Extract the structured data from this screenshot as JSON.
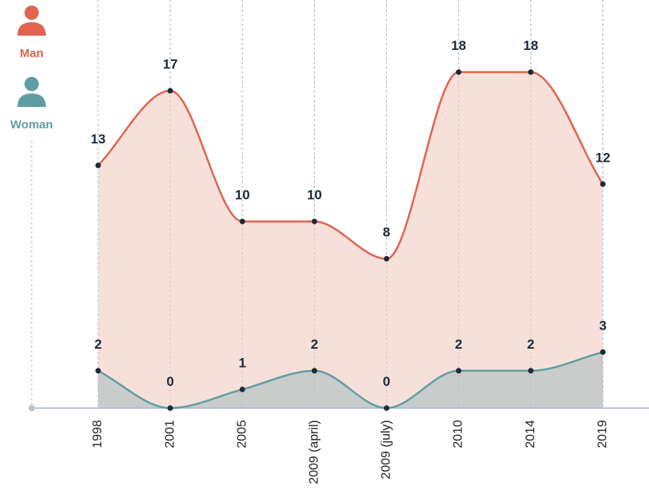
{
  "chart_data": {
    "type": "line",
    "categories": [
      "1998",
      "2001",
      "2005",
      "2009 (april)",
      "2009 (july)",
      "2010",
      "2014",
      "2019"
    ],
    "series": [
      {
        "name": "Man",
        "color": "#e0644f",
        "fill": "#f8e0da",
        "values": [
          13,
          17,
          10,
          10,
          8,
          18,
          18,
          12
        ]
      },
      {
        "name": "Woman",
        "color": "#5f9fa3",
        "fill": "#c9cccb",
        "values": [
          2,
          0,
          1,
          2,
          0,
          2,
          2,
          3
        ]
      }
    ],
    "ylim": [
      0,
      18
    ]
  }
}
